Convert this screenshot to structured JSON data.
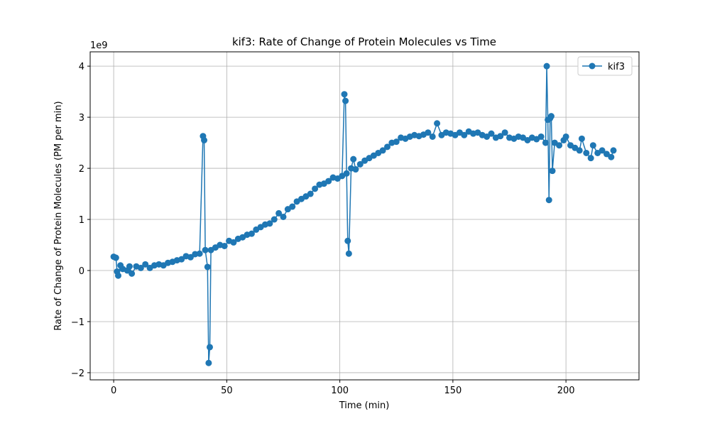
{
  "chart_data": {
    "type": "line",
    "title": "kif3: Rate of Change of Protein Molecules vs Time",
    "xlabel": "Time (min)",
    "ylabel": "Rate of Change of Protein Molecules (PM per min)",
    "y_offset_label": "1e9",
    "x": [
      0,
      1,
      1.5,
      2,
      3,
      4,
      6,
      7,
      8,
      10,
      12,
      14,
      16,
      18,
      20,
      22,
      24,
      26,
      28,
      30,
      32,
      34,
      36,
      38,
      39.5,
      40,
      40.5,
      41.5,
      42,
      42.5,
      43,
      45,
      47,
      49,
      51,
      53,
      55,
      57,
      59,
      61,
      63,
      65,
      67,
      69,
      71,
      73,
      75,
      77,
      79,
      81,
      83,
      85,
      87,
      89,
      91,
      93,
      95,
      97,
      99,
      101,
      102,
      102.5,
      103,
      103.5,
      104,
      105,
      106,
      107,
      109,
      111,
      113,
      115,
      117,
      119,
      121,
      123,
      125,
      127,
      129,
      131,
      133,
      135,
      137,
      139,
      141,
      143,
      145,
      147,
      149,
      151,
      153,
      155,
      157,
      159,
      161,
      163,
      165,
      167,
      169,
      171,
      173,
      175,
      177,
      179,
      181,
      183,
      185,
      187,
      189,
      191,
      191.5,
      192,
      192.5,
      193,
      193.5,
      194,
      195,
      197,
      199,
      200,
      202,
      204,
      206,
      207,
      209,
      211,
      212,
      214,
      216,
      218,
      220,
      221
    ],
    "series": [
      {
        "name": "kif3",
        "color": "#1f77b4",
        "values": [
          0.27,
          0.25,
          -0.02,
          -0.1,
          0.1,
          0.03,
          0.0,
          0.08,
          -0.06,
          0.08,
          0.05,
          0.12,
          0.05,
          0.1,
          0.12,
          0.1,
          0.15,
          0.17,
          0.2,
          0.22,
          0.28,
          0.26,
          0.32,
          0.33,
          2.63,
          2.55,
          0.4,
          0.07,
          -1.81,
          -1.5,
          0.4,
          0.45,
          0.5,
          0.48,
          0.58,
          0.55,
          0.62,
          0.65,
          0.7,
          0.72,
          0.8,
          0.85,
          0.9,
          0.92,
          1.0,
          1.12,
          1.05,
          1.2,
          1.25,
          1.35,
          1.4,
          1.45,
          1.5,
          1.6,
          1.68,
          1.7,
          1.75,
          1.82,
          1.8,
          1.85,
          3.45,
          3.32,
          1.9,
          0.58,
          0.33,
          2.0,
          2.18,
          1.98,
          2.08,
          2.15,
          2.2,
          2.25,
          2.3,
          2.35,
          2.42,
          2.5,
          2.52,
          2.6,
          2.58,
          2.62,
          2.65,
          2.63,
          2.66,
          2.7,
          2.62,
          2.88,
          2.65,
          2.7,
          2.68,
          2.65,
          2.7,
          2.65,
          2.72,
          2.68,
          2.7,
          2.65,
          2.62,
          2.68,
          2.6,
          2.63,
          2.7,
          2.6,
          2.58,
          2.62,
          2.6,
          2.55,
          2.6,
          2.57,
          2.62,
          2.5,
          4.0,
          2.95,
          1.38,
          2.98,
          3.02,
          1.95,
          2.5,
          2.45,
          2.55,
          2.62,
          2.45,
          2.4,
          2.35,
          2.58,
          2.3,
          2.2,
          2.45,
          2.3,
          2.35,
          2.28,
          2.22,
          2.35
        ]
      }
    ],
    "xlim": [
      -10.4,
      232.3
    ],
    "ylim": [
      -2.14,
      4.28
    ],
    "xticks": [
      0,
      50,
      100,
      150,
      200
    ],
    "yticks": [
      {
        "value": -2,
        "label": "−2"
      },
      {
        "value": -1,
        "label": "−1"
      },
      0,
      1,
      2,
      3,
      4
    ],
    "grid": true,
    "legend": "upper right"
  }
}
